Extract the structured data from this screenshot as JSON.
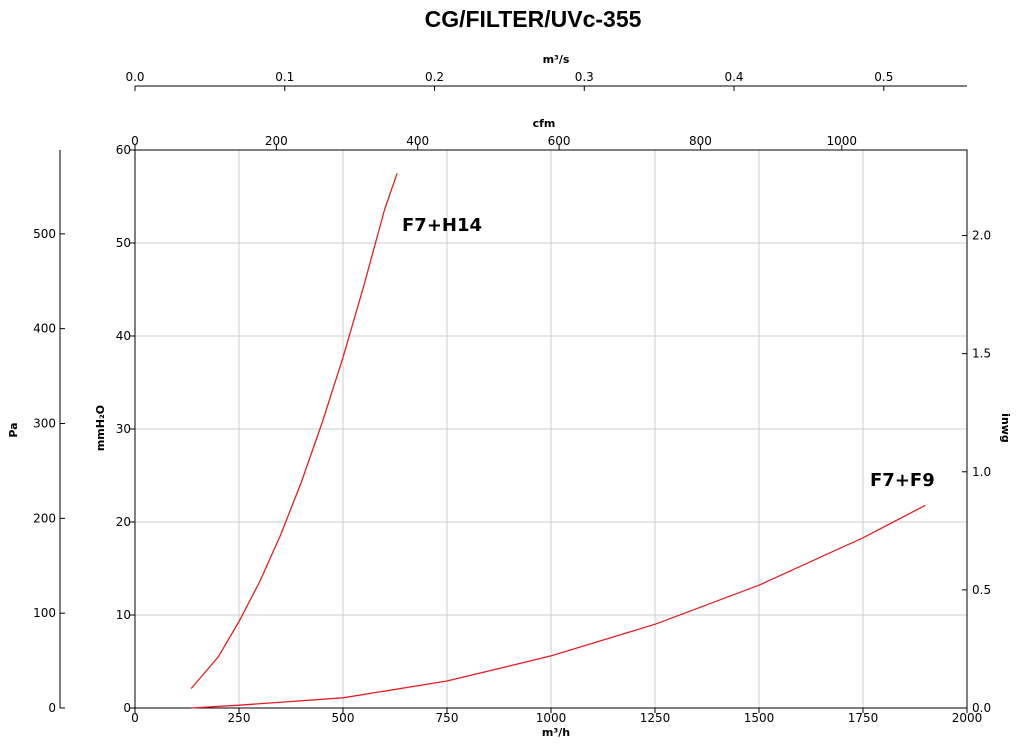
{
  "chart_data": {
    "type": "line",
    "title": "CG/FILTER/UVc-355",
    "grid": true,
    "x_primary": {
      "label": "m³/h",
      "range": [
        0,
        2000
      ],
      "ticks": [
        "0",
        "250",
        "500",
        "750",
        "1000",
        "1250",
        "1500",
        "1750",
        "2000"
      ]
    },
    "x_top_cfm": {
      "label": "cfm",
      "ticks": [
        "0",
        "200",
        "400",
        "600",
        "800",
        "1000"
      ]
    },
    "x_top_m3s": {
      "label": "m³/s",
      "ticks": [
        "0.0",
        "0.1",
        "0.2",
        "0.3",
        "0.4",
        "0.5"
      ]
    },
    "y_primary": {
      "label": "mmH₂O",
      "range": [
        0,
        60
      ],
      "ticks": [
        "0",
        "10",
        "20",
        "30",
        "40",
        "50",
        "60"
      ]
    },
    "y_left_pa": {
      "label": "Pa",
      "ticks": [
        "0",
        "100",
        "200",
        "300",
        "400",
        "500"
      ]
    },
    "y_right_inwg": {
      "label": "inwg",
      "ticks": [
        "0.0",
        "0.5",
        "1.0",
        "1.5",
        "2.0"
      ]
    },
    "series": [
      {
        "name": "F7+H14",
        "color": "#e31e24",
        "x": [
          135,
          200,
          250,
          300,
          350,
          400,
          450,
          500,
          550,
          600,
          630
        ],
        "y": [
          2.1,
          5.5,
          9.3,
          13.6,
          18.6,
          24.3,
          30.7,
          37.7,
          45.4,
          53.6,
          57.5
        ]
      },
      {
        "name": "F7+F9",
        "color": "#e31e24",
        "x": [
          135,
          250,
          500,
          750,
          1000,
          1250,
          1500,
          1750,
          1900
        ],
        "y": [
          0.0,
          0.3,
          1.1,
          2.9,
          5.6,
          9.0,
          13.2,
          18.3,
          21.8
        ]
      }
    ]
  }
}
